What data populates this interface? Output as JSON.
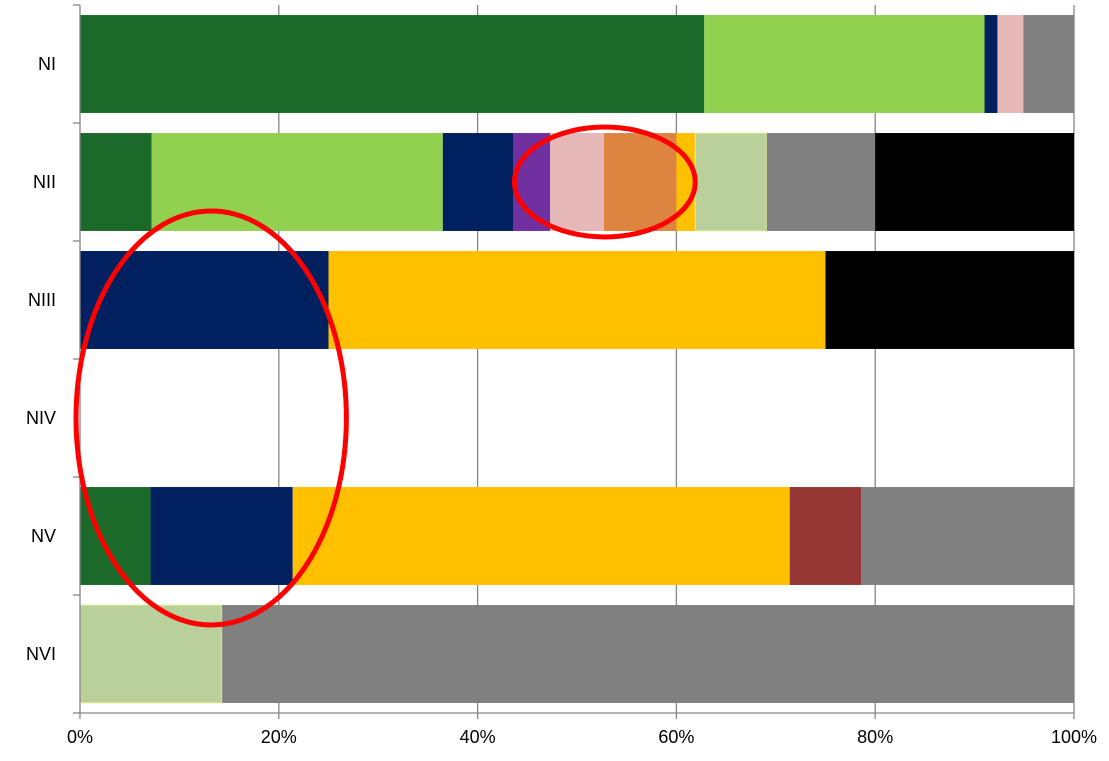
{
  "chart_data": {
    "type": "bar",
    "orientation": "horizontal",
    "stacked": "percent",
    "title": "",
    "xlabel": "",
    "ylabel": "",
    "xlim": [
      0,
      100
    ],
    "x_ticks": [
      "0%",
      "20%",
      "40%",
      "60%",
      "80%",
      "100%"
    ],
    "grid": "vertical",
    "legend": "none",
    "categories": [
      "NI",
      "NII",
      "NIII",
      "NIV",
      "NV",
      "NVI"
    ],
    "segments": [
      [
        {
          "color": "#1b6a2a",
          "value": 62.8
        },
        {
          "color": "#92d050",
          "value": 28.2
        },
        {
          "color": "#002060",
          "value": 1.3
        },
        {
          "color": "#e6b9b8",
          "value": 2.6
        },
        {
          "color": "#808080",
          "value": 5.1
        }
      ],
      [
        {
          "color": "#1b6a2a",
          "value": 7.2
        },
        {
          "color": "#92d050",
          "value": 29.3
        },
        {
          "color": "#002060",
          "value": 7.1
        },
        {
          "color": "#7030a0",
          "value": 3.7
        },
        {
          "color": "#e6b9b8",
          "value": 5.4
        },
        {
          "color": "#dd853e",
          "value": 7.3
        },
        {
          "color": "#ffc000",
          "value": 1.9
        },
        {
          "color": "#b9d09a",
          "value": 7.2
        },
        {
          "color": "#808080",
          "value": 10.9
        },
        {
          "color": "#000000",
          "value": 20.0
        }
      ],
      [
        {
          "color": "#002060",
          "value": 25.0
        },
        {
          "color": "#ffc000",
          "value": 50.0
        },
        {
          "color": "#000000",
          "value": 25.0
        }
      ],
      [],
      [
        {
          "color": "#1b6a2a",
          "value": 7.1
        },
        {
          "color": "#002060",
          "value": 14.3
        },
        {
          "color": "#ffc000",
          "value": 50.0
        },
        {
          "color": "#953735",
          "value": 7.2
        },
        {
          "color": "#808080",
          "value": 21.4
        }
      ],
      [
        {
          "color": "#b9d09a",
          "value": 14.3
        },
        {
          "color": "#808080",
          "value": 85.7
        }
      ]
    ],
    "annotations": [
      {
        "type": "ellipse",
        "color": "#ff0000",
        "x_center": 13.2,
        "x_half_width": 13.6,
        "category_span": [
          "NIII",
          "NV"
        ]
      },
      {
        "type": "ellipse",
        "color": "#ff0000",
        "x_center": 52.8,
        "x_half_width": 9.1,
        "category_span": [
          "NII",
          "NII"
        ]
      }
    ]
  }
}
